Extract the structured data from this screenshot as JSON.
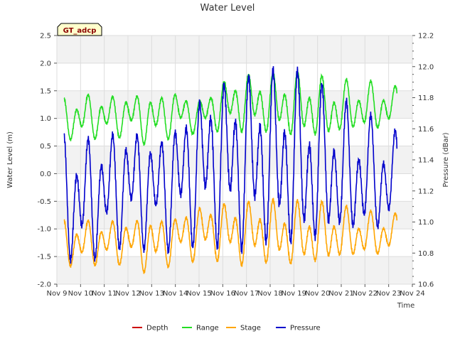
{
  "chart_data": {
    "type": "line",
    "title": "Water Level",
    "badge": "GT_adcp",
    "xlabel": "Time",
    "ylabel": "Water Level (m)",
    "y2label": "Pressure (dBar)",
    "ylim": [
      -2.0,
      2.5
    ],
    "y2lim": [
      10.6,
      12.2
    ],
    "xlim_days": [
      9,
      24
    ],
    "x_ticks": [
      "Nov 9",
      "Nov 10",
      "Nov 11",
      "Nov 12",
      "Nov 13",
      "Nov 14",
      "Nov 15",
      "Nov 16",
      "Nov 17",
      "Nov 18",
      "Nov 19",
      "Nov 20",
      "Nov 21",
      "Nov 22",
      "Nov 23",
      "Nov 24"
    ],
    "y_ticks": [
      "2.5",
      "2.0",
      "1.5",
      "1.0",
      "0.5",
      "0.0",
      "-0.5",
      "-1.0",
      "-1.5",
      "-2.0"
    ],
    "y2_ticks": [
      "12.2",
      "12.0",
      "11.8",
      "11.6",
      "11.4",
      "11.2",
      "11.0",
      "10.8",
      "10.6"
    ],
    "grid": true,
    "legend_position": "bottom",
    "series": [
      {
        "name": "Depth",
        "color": "#cc0000",
        "values": []
      },
      {
        "name": "Range",
        "color": "#22dd22",
        "axis": "left",
        "x_day_start": 9.3,
        "x_day_end": 23.35,
        "highs": [
          1.4,
          1.48,
          1.45,
          1.52,
          1.5,
          1.58,
          1.36,
          1.72,
          1.85,
          1.85,
          1.88,
          1.86,
          1.72,
          1.7,
          1.68,
          1.6
        ],
        "lows": [
          0.55,
          0.58,
          0.62,
          0.65,
          0.45,
          0.7,
          0.72,
          0.75,
          0.72,
          0.7,
          0.6,
          0.55,
          0.55,
          0.7,
          0.72,
          0.8
        ],
        "mid_level": 1.2
      },
      {
        "name": "Stage",
        "color": "#ffa500",
        "axis": "left",
        "x_day_start": 9.3,
        "x_day_end": 23.35,
        "highs": [
          -0.8,
          -0.8,
          -0.8,
          -0.75,
          -0.7,
          -0.68,
          -0.5,
          -0.45,
          -0.45,
          -0.42,
          -0.45,
          -0.5,
          -0.5,
          -0.62,
          -0.68,
          -0.7
        ],
        "lows": [
          -1.75,
          -1.7,
          -1.68,
          -1.65,
          -1.88,
          -1.6,
          -1.6,
          -1.6,
          -1.7,
          -1.68,
          -1.75,
          -1.75,
          -1.7,
          -1.6,
          -1.55,
          -1.5
        ],
        "mid_level": -1.1
      },
      {
        "name": "Pressure",
        "color": "#0000cc",
        "axis": "right",
        "x_day_start": 9.3,
        "x_day_end": 23.35,
        "highs": [
          11.6,
          11.58,
          11.62,
          11.68,
          11.6,
          11.72,
          11.88,
          11.98,
          12.0,
          12.0,
          12.02,
          11.95,
          11.85,
          11.75,
          11.68,
          11.6
        ],
        "lows": [
          10.7,
          10.7,
          10.78,
          10.85,
          10.8,
          10.82,
          10.84,
          10.82,
          10.78,
          10.8,
          10.76,
          10.72,
          10.82,
          10.84,
          10.88,
          10.9
        ],
        "mid_level": 11.25
      }
    ]
  }
}
